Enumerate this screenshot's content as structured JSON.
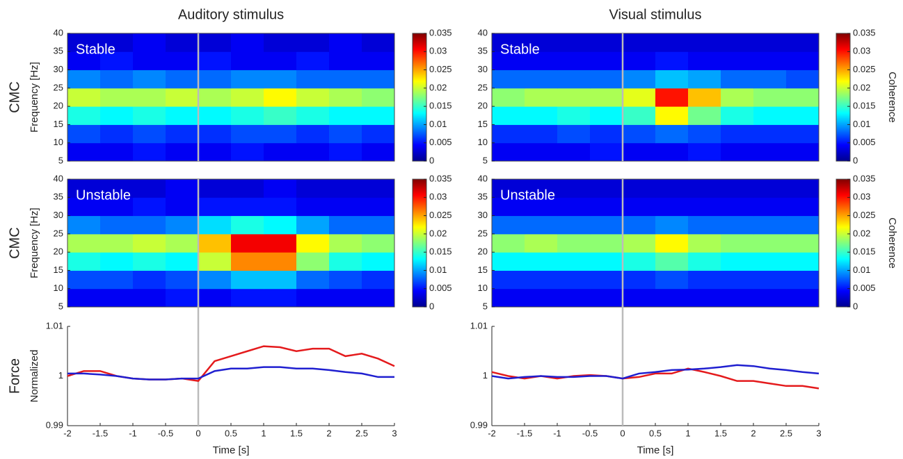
{
  "chart_data": [
    {
      "type": "heatmap",
      "title": "Auditory stimulus",
      "row_label": "CMC",
      "ylabel": "Frequency [Hz]",
      "panel_label": "Stable",
      "colormap": "jet",
      "xlim": [
        -2,
        3
      ],
      "ylim": [
        5,
        40
      ],
      "yticks": [
        5,
        10,
        15,
        20,
        25,
        30,
        35,
        40
      ],
      "vline": 0,
      "clim": [
        0,
        0.035
      ],
      "cticks": [
        0,
        0.005,
        0.01,
        0.015,
        0.02,
        0.025,
        0.03,
        0.035
      ],
      "values": [
        [
          0.004,
          0.004,
          0.005,
          0.004,
          0.004,
          0.005,
          0.004,
          0.004,
          0.005,
          0.004
        ],
        [
          0.007,
          0.006,
          0.007,
          0.006,
          0.006,
          0.007,
          0.007,
          0.006,
          0.007,
          0.006
        ],
        [
          0.014,
          0.013,
          0.014,
          0.013,
          0.013,
          0.014,
          0.015,
          0.014,
          0.013,
          0.013
        ],
        [
          0.02,
          0.019,
          0.019,
          0.02,
          0.019,
          0.02,
          0.022,
          0.02,
          0.019,
          0.018
        ],
        [
          0.009,
          0.008,
          0.009,
          0.008,
          0.008,
          0.009,
          0.009,
          0.008,
          0.008,
          0.008
        ],
        [
          0.004,
          0.005,
          0.004,
          0.004,
          0.005,
          0.004,
          0.004,
          0.005,
          0.004,
          0.004
        ],
        [
          0.003,
          0.003,
          0.004,
          0.003,
          0.003,
          0.004,
          0.003,
          0.003,
          0.004,
          0.003
        ]
      ]
    },
    {
      "type": "heatmap",
      "row_label": "CMC",
      "ylabel": "Frequency [Hz]",
      "panel_label": "Unstable",
      "colormap": "jet",
      "xlim": [
        -2,
        3
      ],
      "ylim": [
        5,
        40
      ],
      "yticks": [
        5,
        10,
        15,
        20,
        25,
        30,
        35,
        40
      ],
      "vline": 0,
      "clim": [
        0,
        0.035
      ],
      "cticks": [
        0,
        0.005,
        0.01,
        0.015,
        0.02,
        0.025,
        0.03,
        0.035
      ],
      "values": [
        [
          0.004,
          0.004,
          0.004,
          0.005,
          0.004,
          0.005,
          0.005,
          0.004,
          0.004,
          0.004
        ],
        [
          0.007,
          0.007,
          0.006,
          0.007,
          0.009,
          0.011,
          0.011,
          0.008,
          0.007,
          0.006
        ],
        [
          0.014,
          0.013,
          0.014,
          0.013,
          0.02,
          0.026,
          0.026,
          0.018,
          0.014,
          0.013
        ],
        [
          0.019,
          0.019,
          0.02,
          0.019,
          0.024,
          0.031,
          0.031,
          0.022,
          0.019,
          0.018
        ],
        [
          0.009,
          0.008,
          0.008,
          0.009,
          0.012,
          0.014,
          0.013,
          0.01,
          0.008,
          0.008
        ],
        [
          0.004,
          0.004,
          0.005,
          0.004,
          0.005,
          0.005,
          0.005,
          0.004,
          0.004,
          0.004
        ],
        [
          0.003,
          0.003,
          0.003,
          0.004,
          0.003,
          0.003,
          0.004,
          0.003,
          0.003,
          0.003
        ]
      ]
    },
    {
      "type": "line",
      "row_label": "Force",
      "ylabel": "Normalized",
      "xlabel": "Time [s]",
      "vline": 0,
      "xlim": [
        -2,
        3
      ],
      "ylim": [
        0.99,
        1.01
      ],
      "yticks": [
        0.99,
        1,
        1.01
      ],
      "xticks": [
        -2,
        -1.5,
        -1,
        -0.5,
        0,
        0.5,
        1,
        1.5,
        2,
        2.5,
        3
      ],
      "x": [
        -2,
        -1.75,
        -1.5,
        -1.25,
        -1,
        -0.75,
        -0.5,
        -0.25,
        0,
        0.25,
        0.5,
        0.75,
        1,
        1.25,
        1.5,
        1.75,
        2,
        2.25,
        2.5,
        2.75,
        3
      ],
      "series": [
        {
          "color": "#e41a1c",
          "values": [
            1.0,
            1.001,
            1.001,
            1.0,
            0.9995,
            0.9993,
            0.9993,
            0.9995,
            0.999,
            1.003,
            1.004,
            1.005,
            1.006,
            1.0058,
            1.005,
            1.0055,
            1.0055,
            1.004,
            1.0045,
            1.0035,
            1.002
          ]
        },
        {
          "color": "#1f1fd0",
          "values": [
            1.0005,
            1.0005,
            1.0003,
            1.0,
            0.9995,
            0.9993,
            0.9993,
            0.9995,
            0.9995,
            1.001,
            1.0015,
            1.0015,
            1.0018,
            1.0018,
            1.0015,
            1.0015,
            1.0012,
            1.0008,
            1.0005,
            0.9998,
            0.9998
          ]
        }
      ]
    },
    {
      "type": "heatmap",
      "title": "Visual stimulus",
      "panel_label": "Stable",
      "colorbar_label": "Coherence",
      "colormap": "jet",
      "xlim": [
        -2,
        3
      ],
      "ylim": [
        5,
        40
      ],
      "yticks": [
        5,
        10,
        15,
        20,
        25,
        30,
        35,
        40
      ],
      "vline": 0,
      "clim": [
        0,
        0.035
      ],
      "cticks": [
        0,
        0.005,
        0.01,
        0.015,
        0.02,
        0.025,
        0.03,
        0.035
      ],
      "values": [
        [
          0.004,
          0.004,
          0.004,
          0.005,
          0.004,
          0.004,
          0.005,
          0.004,
          0.004,
          0.004
        ],
        [
          0.006,
          0.006,
          0.007,
          0.006,
          0.007,
          0.008,
          0.007,
          0.006,
          0.006,
          0.006
        ],
        [
          0.013,
          0.013,
          0.014,
          0.013,
          0.015,
          0.022,
          0.017,
          0.014,
          0.013,
          0.013
        ],
        [
          0.018,
          0.019,
          0.019,
          0.019,
          0.021,
          0.03,
          0.024,
          0.019,
          0.018,
          0.018
        ],
        [
          0.008,
          0.008,
          0.008,
          0.008,
          0.009,
          0.011,
          0.01,
          0.008,
          0.008,
          0.007
        ],
        [
          0.004,
          0.004,
          0.004,
          0.004,
          0.004,
          0.005,
          0.004,
          0.004,
          0.004,
          0.004
        ],
        [
          0.003,
          0.003,
          0.003,
          0.003,
          0.003,
          0.003,
          0.003,
          0.003,
          0.003,
          0.003
        ]
      ]
    },
    {
      "type": "heatmap",
      "panel_label": "Unstable",
      "colorbar_label": "Coherence",
      "colormap": "jet",
      "xlim": [
        -2,
        3
      ],
      "ylim": [
        5,
        40
      ],
      "yticks": [
        5,
        10,
        15,
        20,
        25,
        30,
        35,
        40
      ],
      "vline": 0,
      "clim": [
        0,
        0.035
      ],
      "cticks": [
        0,
        0.005,
        0.01,
        0.015,
        0.02,
        0.025,
        0.03,
        0.035
      ],
      "values": [
        [
          0.004,
          0.004,
          0.004,
          0.004,
          0.004,
          0.004,
          0.004,
          0.004,
          0.004,
          0.004
        ],
        [
          0.006,
          0.006,
          0.006,
          0.006,
          0.006,
          0.007,
          0.006,
          0.006,
          0.006,
          0.006
        ],
        [
          0.013,
          0.013,
          0.013,
          0.013,
          0.014,
          0.016,
          0.014,
          0.013,
          0.013,
          0.013
        ],
        [
          0.018,
          0.019,
          0.018,
          0.018,
          0.019,
          0.022,
          0.019,
          0.018,
          0.018,
          0.018
        ],
        [
          0.008,
          0.008,
          0.008,
          0.008,
          0.008,
          0.009,
          0.008,
          0.008,
          0.008,
          0.008
        ],
        [
          0.004,
          0.004,
          0.004,
          0.004,
          0.004,
          0.004,
          0.004,
          0.004,
          0.004,
          0.004
        ],
        [
          0.003,
          0.003,
          0.003,
          0.003,
          0.003,
          0.003,
          0.003,
          0.003,
          0.003,
          0.003
        ]
      ]
    },
    {
      "type": "line",
      "xlabel": "Time [s]",
      "vline": 0,
      "xlim": [
        -2,
        3
      ],
      "ylim": [
        0.99,
        1.01
      ],
      "yticks": [
        0.99,
        1,
        1.01
      ],
      "xticks": [
        -2,
        -1.5,
        -1,
        -0.5,
        0,
        0.5,
        1,
        1.5,
        2,
        2.5,
        3
      ],
      "x": [
        -2,
        -1.75,
        -1.5,
        -1.25,
        -1,
        -0.75,
        -0.5,
        -0.25,
        0,
        0.25,
        0.5,
        0.75,
        1,
        1.25,
        1.5,
        1.75,
        2,
        2.25,
        2.5,
        2.75,
        3
      ],
      "series": [
        {
          "color": "#e41a1c",
          "values": [
            1.0008,
            1.0,
            0.9995,
            1.0,
            0.9995,
            1.0,
            1.0002,
            1.0,
            0.9995,
            0.9998,
            1.0005,
            1.0005,
            1.0015,
            1.0008,
            1.0,
            0.999,
            0.999,
            0.9985,
            0.998,
            0.998,
            0.9975
          ]
        },
        {
          "color": "#1f1fd0",
          "values": [
            1.0,
            0.9995,
            0.9998,
            1.0,
            0.9998,
            0.9998,
            1.0,
            1.0,
            0.9995,
            1.0005,
            1.0008,
            1.0012,
            1.0013,
            1.0015,
            1.0018,
            1.0022,
            1.002,
            1.0015,
            1.0012,
            1.0008,
            1.0005
          ]
        }
      ]
    }
  ]
}
